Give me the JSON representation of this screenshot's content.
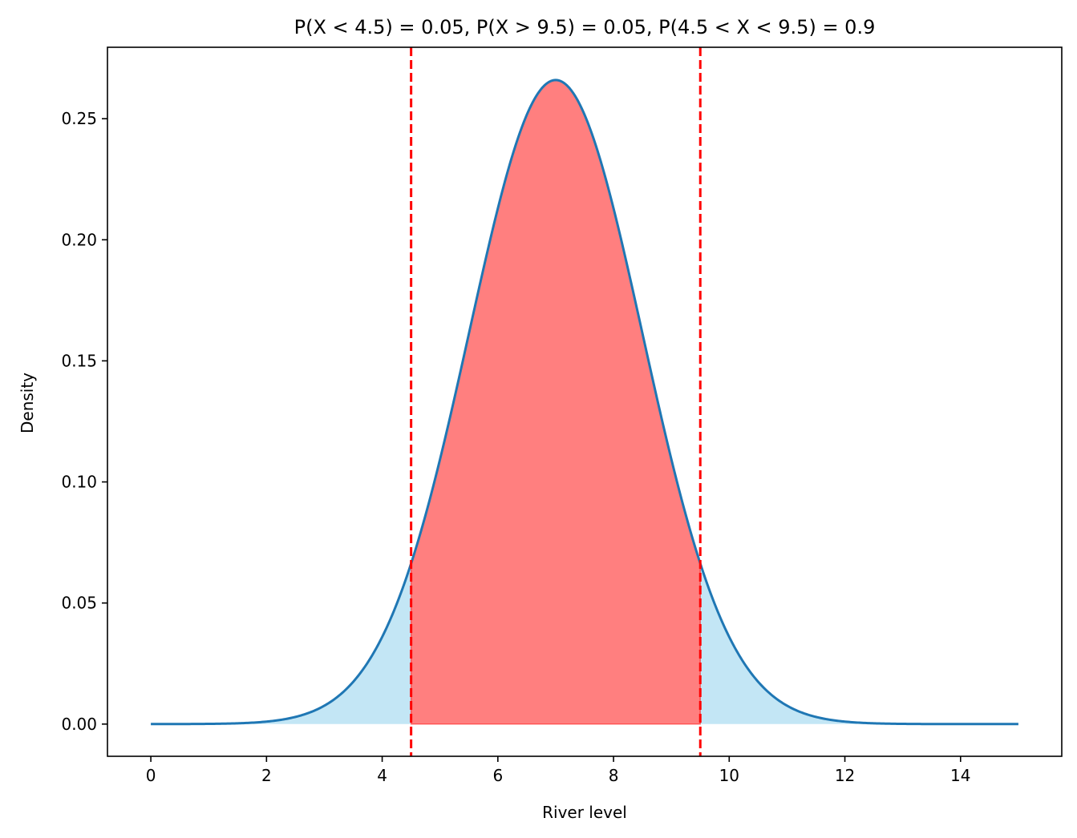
{
  "chart_data": {
    "type": "area",
    "title": "P(X < 4.5) = 0.05, P(X > 9.5) = 0.05, P(4.5 < X < 9.5) = 0.9",
    "xlabel": "River level",
    "ylabel": "Density",
    "xlim": [
      -0.75,
      15.75
    ],
    "ylim": [
      -0.0133,
      0.2795
    ],
    "xticks": [
      0,
      2,
      4,
      6,
      8,
      10,
      12,
      14
    ],
    "xtick_labels": [
      "0",
      "2",
      "4",
      "6",
      "8",
      "10",
      "12",
      "14"
    ],
    "yticks": [
      0.0,
      0.05,
      0.1,
      0.15,
      0.2,
      0.25
    ],
    "ytick_labels": [
      "0.00",
      "0.05",
      "0.10",
      "0.15",
      "0.20",
      "0.25"
    ],
    "grid": false,
    "distribution": {
      "family": "normal",
      "mean": 7.0,
      "sd": 1.5,
      "x_min": 0,
      "x_max": 15
    },
    "thresholds": [
      4.5,
      9.5
    ],
    "probabilities": {
      "below_lower": 0.05,
      "above_upper": 0.05,
      "between": 0.9
    },
    "curve_points": {
      "x": [
        0,
        1,
        2,
        3,
        3.5,
        4,
        4.5,
        5,
        5.5,
        6,
        6.5,
        7,
        7.5,
        8,
        8.5,
        9,
        9.5,
        10,
        10.5,
        11,
        12,
        13,
        14,
        15
      ],
      "y": [
        0.0,
        0.0001,
        0.001,
        0.0076,
        0.0174,
        0.036,
        0.0664,
        0.1093,
        0.1613,
        0.213,
        0.2516,
        0.266,
        0.2516,
        0.213,
        0.1613,
        0.1093,
        0.0664,
        0.036,
        0.0174,
        0.0076,
        0.001,
        0.0001,
        0.0,
        0.0
      ]
    },
    "colors": {
      "curve": "#1f77b4",
      "tail_fill": "#87ceeb",
      "center_fill": "#ff0000",
      "threshold_line": "#ff0000",
      "axes": "#000000"
    }
  }
}
